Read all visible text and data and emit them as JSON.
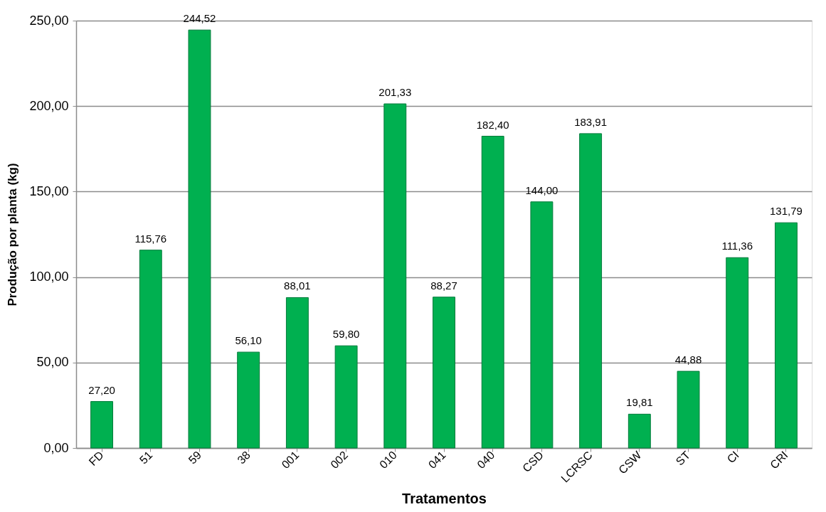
{
  "chart_data": {
    "type": "bar",
    "xlabel": "Tratamentos",
    "ylabel": "Produção por planta (kg)",
    "categories": [
      "FD",
      "51",
      "59",
      "38",
      "001",
      "002",
      "010",
      "041",
      "040",
      "CSD",
      "LCRSC",
      "CSW",
      "ST",
      "CI",
      "CRI"
    ],
    "values": [
      27.2,
      115.76,
      244.52,
      56.1,
      88.01,
      59.8,
      201.33,
      88.27,
      182.4,
      144.0,
      183.91,
      19.81,
      44.88,
      111.36,
      131.79
    ],
    "value_labels": [
      "27,20",
      "115,76",
      "244,52",
      "56,10",
      "88,01",
      "59,80",
      "201,33",
      "88,27",
      "182,40",
      "144,00",
      "183,91",
      "19,81",
      "44,88",
      "111,36",
      "131,79"
    ],
    "color": "#00b050",
    "ylim": [
      0,
      250
    ],
    "yticks": [
      {
        "value": 0,
        "label": "0,00"
      },
      {
        "value": 50,
        "label": "50,00"
      },
      {
        "value": 100,
        "label": "100,00"
      },
      {
        "value": 150,
        "label": "150,00"
      },
      {
        "value": 200,
        "label": "200,00"
      },
      {
        "value": 250,
        "label": "250,00"
      }
    ],
    "grid": "y"
  }
}
